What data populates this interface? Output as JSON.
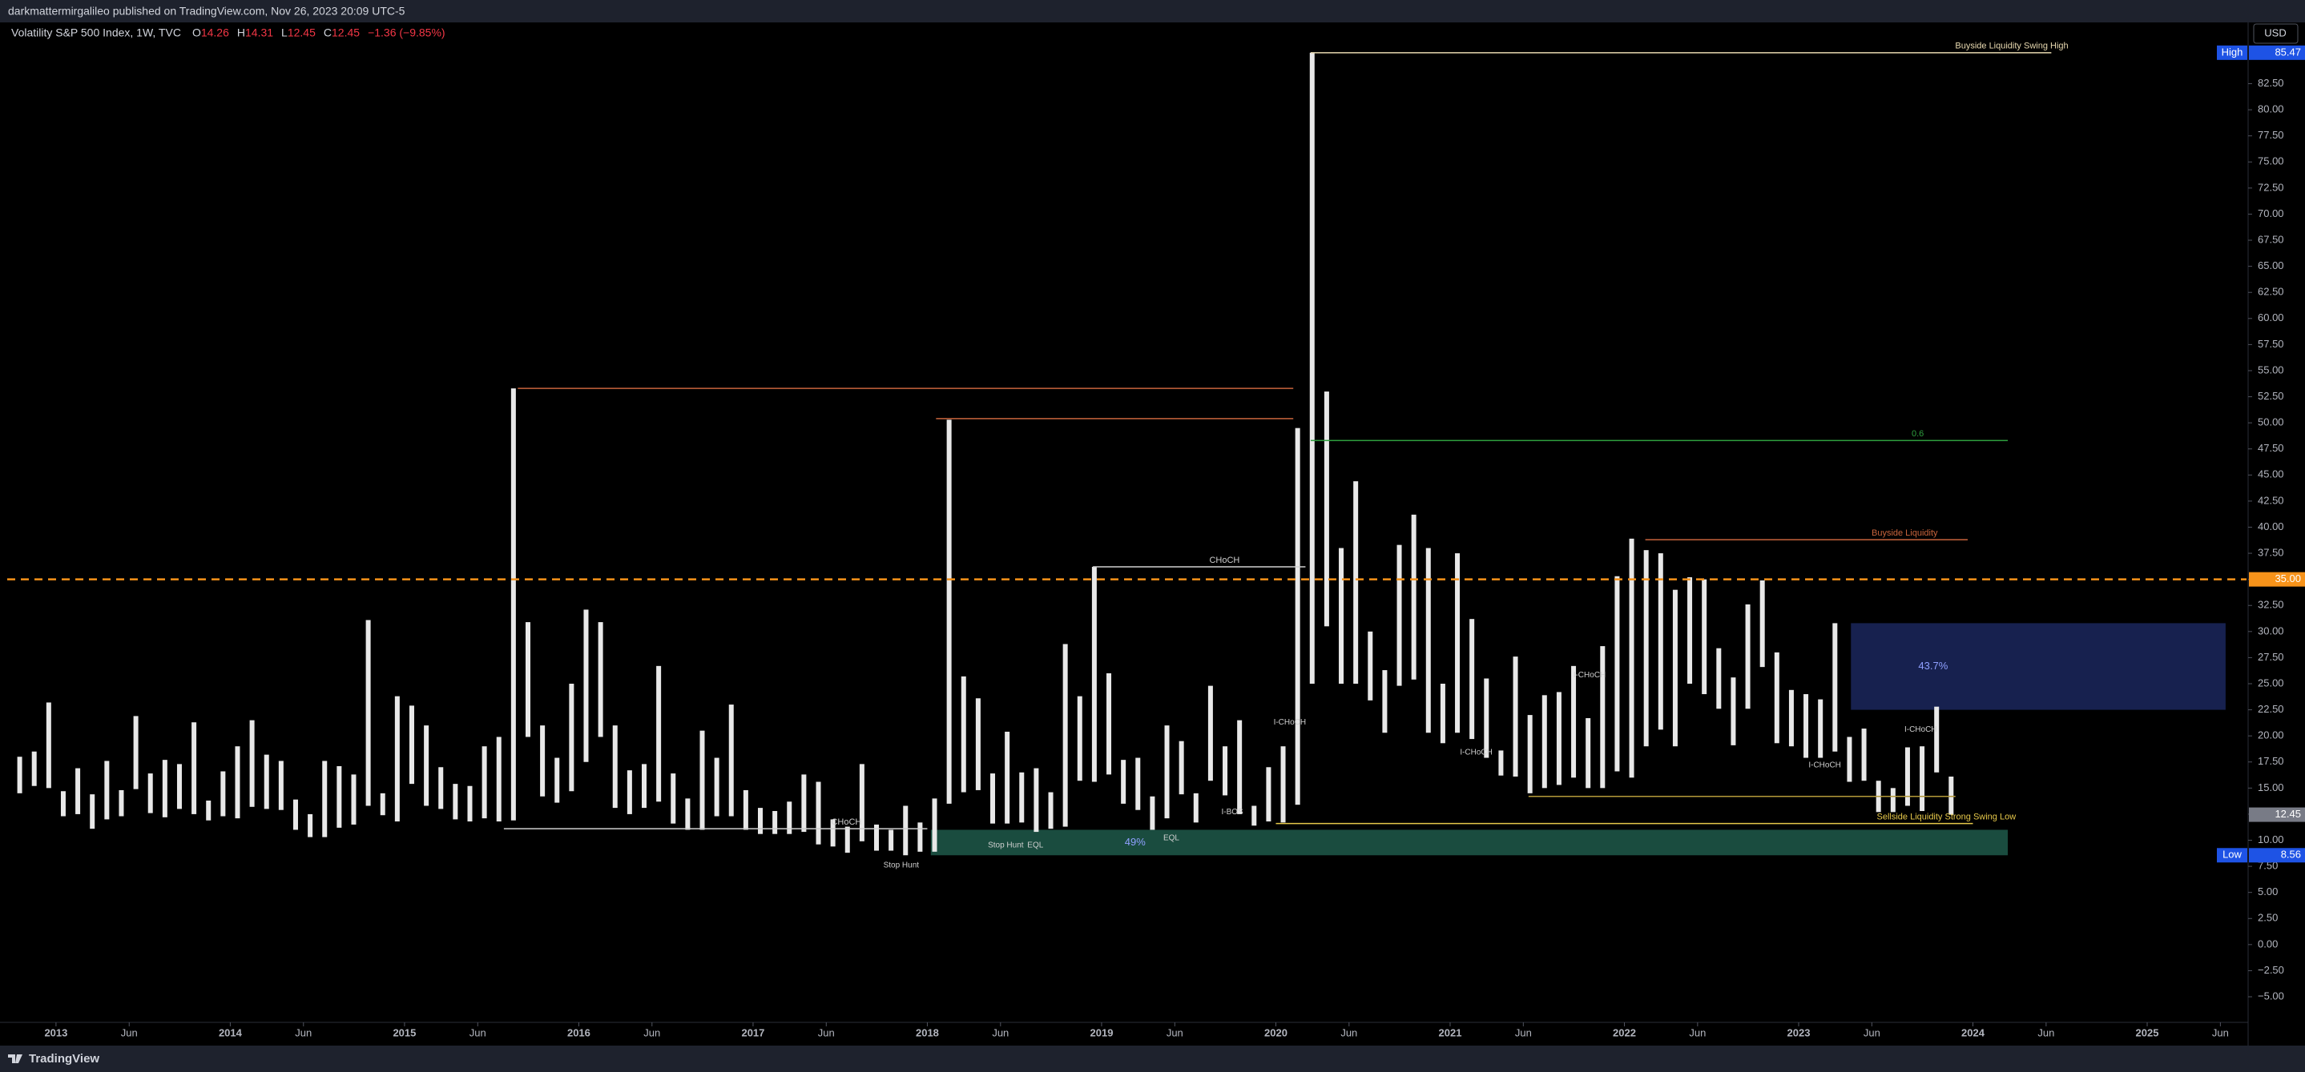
{
  "header": {
    "publisher": "darkmattermirgalileo published on TradingView.com, Nov 26, 2023 20:09 UTC-5",
    "footer": "TradingView"
  },
  "chart_data": {
    "type": "range-bar",
    "title": "Volatility S&P 500 Index, 1W, TVC",
    "ohlc": [
      {
        "key": "O",
        "value": 14.26
      },
      {
        "key": "H",
        "value": 14.31
      },
      {
        "key": "L",
        "value": 12.45
      },
      {
        "key": "C",
        "value": 12.45
      }
    ],
    "change": "−1.36 (−9.85%)",
    "currency": "USD",
    "color": "#e8e8e8",
    "x": [
      "2012-10",
      "2012-11",
      "2012-12",
      "2013-01",
      "2013-02",
      "2013-03",
      "2013-04",
      "2013-05",
      "2013-06",
      "2013-07",
      "2013-08",
      "2013-09",
      "2013-10",
      "2013-11",
      "2013-12",
      "2014-01",
      "2014-02",
      "2014-03",
      "2014-04",
      "2014-05",
      "2014-06",
      "2014-07",
      "2014-08",
      "2014-09",
      "2014-10",
      "2014-11",
      "2014-12",
      "2015-01",
      "2015-02",
      "2015-03",
      "2015-04",
      "2015-05",
      "2015-06",
      "2015-07",
      "2015-08",
      "2015-09",
      "2015-10",
      "2015-11",
      "2015-12",
      "2016-01",
      "2016-02",
      "2016-03",
      "2016-04",
      "2016-05",
      "2016-06",
      "2016-07",
      "2016-08",
      "2016-09",
      "2016-10",
      "2016-11",
      "2016-12",
      "2017-01",
      "2017-02",
      "2017-03",
      "2017-04",
      "2017-05",
      "2017-06",
      "2017-07",
      "2017-08",
      "2017-09",
      "2017-10",
      "2017-11",
      "2017-12",
      "2018-01",
      "2018-02",
      "2018-03",
      "2018-04",
      "2018-05",
      "2018-06",
      "2018-07",
      "2018-08",
      "2018-09",
      "2018-10",
      "2018-11",
      "2018-12",
      "2019-01",
      "2019-02",
      "2019-03",
      "2019-04",
      "2019-05",
      "2019-06",
      "2019-07",
      "2019-08",
      "2019-09",
      "2019-10",
      "2019-11",
      "2019-12",
      "2020-01",
      "2020-02",
      "2020-03",
      "2020-04",
      "2020-05",
      "2020-06",
      "2020-07",
      "2020-08",
      "2020-09",
      "2020-10",
      "2020-11",
      "2020-12",
      "2021-01",
      "2021-02",
      "2021-03",
      "2021-04",
      "2021-05",
      "2021-06",
      "2021-07",
      "2021-08",
      "2021-09",
      "2021-10",
      "2021-11",
      "2021-12",
      "2022-01",
      "2022-02",
      "2022-03",
      "2022-04",
      "2022-05",
      "2022-06",
      "2022-07",
      "2022-08",
      "2022-09",
      "2022-10",
      "2022-11",
      "2022-12",
      "2023-01",
      "2023-02",
      "2023-03",
      "2023-04",
      "2023-05",
      "2023-06",
      "2023-07",
      "2023-08",
      "2023-09",
      "2023-10",
      "2023-11"
    ],
    "series": [
      {
        "name": "High",
        "values": [
          18.0,
          18.5,
          23.2,
          14.7,
          16.9,
          14.4,
          17.6,
          14.8,
          21.9,
          16.4,
          17.7,
          17.3,
          21.3,
          13.8,
          16.6,
          19.0,
          21.5,
          18.2,
          17.6,
          13.9,
          12.5,
          17.6,
          17.1,
          16.3,
          31.1,
          14.5,
          23.8,
          22.9,
          21.0,
          17.0,
          15.4,
          15.2,
          19.0,
          19.9,
          53.3,
          30.9,
          21.0,
          17.9,
          25.0,
          32.1,
          30.9,
          21.0,
          16.7,
          17.3,
          26.7,
          16.4,
          14.0,
          20.5,
          17.9,
          23.0,
          14.8,
          13.1,
          12.8,
          13.7,
          16.3,
          15.6,
          12.0,
          11.3,
          17.3,
          11.5,
          11.0,
          13.3,
          11.7,
          14.0,
          50.3,
          25.7,
          23.6,
          16.4,
          20.4,
          16.5,
          16.9,
          14.6,
          28.8,
          23.8,
          36.2,
          26.0,
          17.7,
          17.9,
          14.2,
          21.0,
          19.5,
          14.5,
          24.8,
          19.0,
          21.5,
          13.3,
          17.0,
          19.0,
          49.5,
          85.47,
          53.0,
          38.0,
          44.4,
          30.0,
          26.3,
          38.3,
          41.2,
          38.0,
          25.0,
          37.5,
          31.2,
          25.5,
          18.6,
          27.6,
          22.0,
          23.9,
          24.2,
          26.7,
          21.7,
          28.6,
          35.3,
          38.9,
          37.8,
          37.5,
          34.0,
          35.2,
          35.0,
          28.4,
          25.6,
          32.6,
          34.9,
          28.0,
          24.4,
          24.0,
          23.5,
          30.8,
          19.9,
          20.7,
          15.7,
          15.0,
          18.9,
          19.0,
          22.8,
          16.1
        ]
      },
      {
        "name": "Low",
        "values": [
          14.5,
          15.2,
          15.0,
          12.3,
          12.5,
          11.1,
          12.0,
          12.3,
          14.9,
          12.6,
          12.2,
          13.0,
          12.5,
          11.9,
          12.3,
          12.1,
          13.2,
          13.0,
          12.9,
          11.0,
          10.3,
          10.3,
          11.2,
          11.5,
          13.3,
          12.4,
          11.8,
          15.4,
          13.3,
          13.0,
          12.0,
          11.8,
          12.1,
          11.8,
          11.9,
          19.9,
          14.2,
          13.6,
          14.7,
          17.5,
          19.9,
          13.1,
          12.5,
          13.1,
          13.7,
          11.6,
          11.0,
          11.0,
          12.3,
          12.3,
          11.0,
          10.6,
          10.6,
          10.6,
          10.8,
          9.6,
          9.4,
          8.8,
          9.9,
          9.0,
          9.0,
          8.56,
          8.9,
          8.9,
          13.5,
          14.6,
          14.8,
          11.6,
          11.6,
          11.7,
          10.8,
          11.1,
          11.3,
          15.7,
          15.6,
          16.3,
          13.5,
          12.9,
          11.0,
          12.1,
          14.4,
          11.7,
          15.7,
          14.3,
          12.5,
          11.4,
          11.8,
          11.7,
          13.4,
          25.0,
          30.5,
          25.0,
          25.0,
          23.4,
          20.3,
          24.8,
          25.4,
          20.3,
          19.3,
          20.3,
          19.7,
          17.9,
          16.2,
          16.1,
          14.5,
          15.0,
          15.3,
          16.0,
          15.0,
          15.0,
          16.6,
          16.0,
          19.0,
          20.6,
          19.0,
          25.0,
          24.0,
          22.6,
          19.1,
          22.6,
          26.6,
          19.3,
          19.0,
          17.9,
          17.9,
          18.5,
          15.6,
          15.7,
          12.7,
          12.7,
          13.3,
          12.8,
          16.5,
          12.45
        ]
      }
    ],
    "xlim": [
      2012.72,
      2025.57
    ],
    "xticks": [
      2013,
      {
        "value": 2013.42,
        "label": "Jun"
      },
      2014,
      {
        "value": 2014.42,
        "label": "Jun"
      },
      2015,
      {
        "value": 2015.42,
        "label": "Jun"
      },
      2016,
      {
        "value": 2016.42,
        "label": "Jun"
      },
      2017,
      {
        "value": 2017.42,
        "label": "Jun"
      },
      2018,
      {
        "value": 2018.42,
        "label": "Jun"
      },
      2019,
      {
        "value": 2019.42,
        "label": "Jun"
      },
      2020,
      {
        "value": 2020.42,
        "label": "Jun"
      },
      2021,
      {
        "value": 2021.42,
        "label": "Jun"
      },
      2022,
      {
        "value": 2022.42,
        "label": "Jun"
      },
      2023,
      {
        "value": 2023.42,
        "label": "Jun"
      },
      2024,
      {
        "value": 2024.42,
        "label": "Jun"
      },
      2025,
      {
        "value": 2025.42,
        "label": "Jun"
      }
    ],
    "ylim": [
      -7.3,
      86.3
    ],
    "yticks": [
      {
        "value": 82.5,
        "label": "82.50"
      },
      {
        "value": 80,
        "label": "80.00"
      },
      {
        "value": 77.5,
        "label": "77.50"
      },
      {
        "value": 75,
        "label": "75.00"
      },
      {
        "value": 72.5,
        "label": "72.50"
      },
      {
        "value": 70,
        "label": "70.00"
      },
      {
        "value": 67.5,
        "label": "67.50"
      },
      {
        "value": 65,
        "label": "65.00"
      },
      {
        "value": 62.5,
        "label": "62.50"
      },
      {
        "value": 60,
        "label": "60.00"
      },
      {
        "value": 57.5,
        "label": "57.50"
      },
      {
        "value": 55,
        "label": "55.00"
      },
      {
        "value": 52.5,
        "label": "52.50"
      },
      {
        "value": 50,
        "label": "50.00"
      },
      {
        "value": 47.5,
        "label": "47.50"
      },
      {
        "value": 45,
        "label": "45.00"
      },
      {
        "value": 42.5,
        "label": "42.50"
      },
      {
        "value": 40,
        "label": "40.00"
      },
      {
        "value": 37.5,
        "label": "37.50"
      },
      {
        "value": 35,
        "label": "35.00"
      },
      {
        "value": 32.5,
        "label": "32.50"
      },
      {
        "value": 30,
        "label": "30.00"
      },
      {
        "value": 27.5,
        "label": "27.50"
      },
      {
        "value": 25,
        "label": "25.00"
      },
      {
        "value": 22.5,
        "label": "22.50"
      },
      {
        "value": 20,
        "label": "20.00"
      },
      {
        "value": 17.5,
        "label": "17.50"
      },
      {
        "value": 15,
        "label": "15.00"
      },
      {
        "value": 12.5,
        "label": "12.50"
      },
      {
        "value": 10,
        "label": "10.00"
      },
      {
        "value": 7.5,
        "label": "7.50"
      },
      {
        "value": 5,
        "label": "5.00"
      },
      {
        "value": 2.5,
        "label": "2.50"
      },
      {
        "value": 0,
        "label": "0.00"
      },
      {
        "value": -2.5,
        "label": "−2.50"
      },
      {
        "value": -5,
        "label": "−5.00"
      }
    ],
    "price_tags": [
      {
        "tag": "High",
        "value": 85.47,
        "color": "#1e53e5"
      },
      {
        "value": 35,
        "label": "35.00",
        "color": "#f7931a"
      },
      {
        "value": 12.45,
        "color": "#787b86"
      },
      {
        "tag": "Low",
        "value": 8.56,
        "color": "#1e53e5"
      }
    ],
    "levels": [
      {
        "value": 85.47,
        "from": 2020.2,
        "to": 2024.45,
        "color": "#e8d9b0",
        "label": "Buyside Liquidity Swing High"
      },
      {
        "value": 53.3,
        "from": 2015.65,
        "to": 2020.1,
        "color": "#c8643c"
      },
      {
        "value": 50.4,
        "from": 2018.05,
        "to": 2020.1,
        "color": "#c8643c"
      },
      {
        "value": 48.3,
        "from": 2020.2,
        "to": 2024.2,
        "color": "#2e9e3e",
        "label": "0.6"
      },
      {
        "value": 38.8,
        "from": 2022.12,
        "to": 2023.97,
        "color": "#c8643c",
        "label": "Buyside Liquidity"
      },
      {
        "value": 36.2,
        "from": 2018.95,
        "to": 2020.17,
        "color": "#cfcfcf",
        "label": "CHoCH"
      },
      {
        "value": 35,
        "from": 2012.72,
        "to": 2025.57,
        "color": "#f7931a",
        "dashed": true
      },
      {
        "value": 14.2,
        "from": 2021.45,
        "to": 2023.9,
        "color": "#b59a3a"
      },
      {
        "value": 11.1,
        "from": 2015.57,
        "to": 2018.0,
        "color": "#cfcfcf",
        "label": "CHoCH"
      },
      {
        "value": 11.6,
        "from": 2020.0,
        "to": 2024.0,
        "color": "#e6c84a",
        "label": "Sellside Liquidity Strong Swing Low"
      }
    ],
    "zones": [
      {
        "low": 22.5,
        "high": 30.8,
        "from": 2023.3,
        "to": 2025.45,
        "color": "#2a3d8f",
        "label": "43.7%"
      },
      {
        "low": 8.56,
        "high": 11.0,
        "from": 2018.02,
        "to": 2024.2,
        "color": "#2f8a73",
        "label": "49%"
      }
    ],
    "notes": [
      {
        "text": "Stop Hunt",
        "x": 2017.85,
        "y": 7.6
      },
      {
        "text": "Stop Hunt",
        "x": 2018.45,
        "y": 9.5
      },
      {
        "text": "EQL",
        "x": 2018.62,
        "y": 9.5
      },
      {
        "text": "EQL",
        "x": 2019.4,
        "y": 10.2
      },
      {
        "text": "I-BOS",
        "x": 2019.75,
        "y": 12.7
      },
      {
        "text": "I-CHoCH",
        "x": 2020.08,
        "y": 21.3
      },
      {
        "text": "I-CHoCH",
        "x": 2021.15,
        "y": 18.4
      },
      {
        "text": "I-CHoCH",
        "x": 2021.8,
        "y": 25.8
      },
      {
        "text": "I-CHoCH",
        "x": 2023.15,
        "y": 17.2
      },
      {
        "text": "I-CHoCH",
        "x": 2023.7,
        "y": 20.6
      }
    ]
  }
}
